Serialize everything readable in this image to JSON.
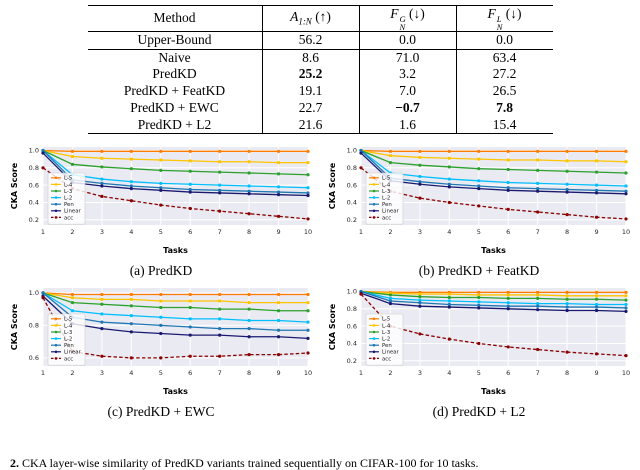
{
  "table": {
    "headers": {
      "method": "Method",
      "a": {
        "base": "A",
        "sub": "1:N",
        "arrow": "(↑)"
      },
      "fg": {
        "base": "F",
        "sup": "G",
        "sub": "N",
        "arrow": "(↓)"
      },
      "fl": {
        "base": "F",
        "sup": "L",
        "sub": "N",
        "arrow": "(↓)"
      }
    },
    "rows": [
      {
        "method": "Upper-Bound",
        "cells": [
          {
            "t": "56.2",
            "b": false
          },
          {
            "t": "0.0",
            "b": false
          },
          {
            "t": "0.0",
            "b": false
          }
        ]
      },
      {
        "method": "Naive",
        "cells": [
          {
            "t": "8.6",
            "b": false
          },
          {
            "t": "71.0",
            "b": false
          },
          {
            "t": "63.4",
            "b": false
          }
        ]
      },
      {
        "method": "PredKD",
        "cells": [
          {
            "t": "25.2",
            "b": true
          },
          {
            "t": "3.2",
            "b": false
          },
          {
            "t": "27.2",
            "b": false
          }
        ]
      },
      {
        "method": "PredKD + FeatKD",
        "cells": [
          {
            "t": "19.1",
            "b": false
          },
          {
            "t": "7.0",
            "b": false
          },
          {
            "t": "26.5",
            "b": false
          }
        ]
      },
      {
        "method": "PredKD + EWC",
        "cells": [
          {
            "t": "22.7",
            "b": false
          },
          {
            "t": "−0.7",
            "b": true
          },
          {
            "t": "7.8",
            "b": true
          }
        ]
      },
      {
        "method": "PredKD + L2",
        "cells": [
          {
            "t": "21.6",
            "b": false
          },
          {
            "t": "1.6",
            "b": false
          },
          {
            "t": "15.4",
            "b": false
          }
        ]
      }
    ]
  },
  "chart_data": [
    {
      "type": "line",
      "caption": "(a) PredKD",
      "xlabel": "Tasks",
      "ylabel": "CKA Score",
      "x": [
        1,
        2,
        3,
        4,
        5,
        6,
        7,
        8,
        9,
        10
      ],
      "ylim": [
        0.14,
        1.04
      ],
      "yticks": [
        0.2,
        0.4,
        0.6,
        0.8,
        1.0
      ],
      "bg": "#eaeaf2",
      "legend": "left",
      "series": [
        {
          "name": "L-5",
          "color": "#ff7c00",
          "dash": false,
          "values": [
            1.0,
            0.99,
            0.99,
            0.99,
            0.99,
            0.99,
            0.99,
            0.99,
            0.99,
            0.99
          ]
        },
        {
          "name": "L-4",
          "color": "#ffc400",
          "dash": false,
          "values": [
            1.0,
            0.93,
            0.91,
            0.9,
            0.89,
            0.88,
            0.87,
            0.87,
            0.86,
            0.86
          ]
        },
        {
          "name": "L-3",
          "color": "#2ca02c",
          "dash": false,
          "values": [
            1.0,
            0.84,
            0.81,
            0.79,
            0.77,
            0.76,
            0.75,
            0.74,
            0.73,
            0.72
          ]
        },
        {
          "name": "L-2",
          "color": "#00bfff",
          "dash": false,
          "values": [
            1.0,
            0.72,
            0.67,
            0.64,
            0.62,
            0.61,
            0.6,
            0.59,
            0.58,
            0.57
          ]
        },
        {
          "name": "Pen",
          "color": "#1f77b4",
          "dash": false,
          "values": [
            1.0,
            0.66,
            0.62,
            0.59,
            0.57,
            0.55,
            0.54,
            0.53,
            0.52,
            0.51
          ]
        },
        {
          "name": "Linear",
          "color": "#191970",
          "dash": false,
          "values": [
            0.97,
            0.63,
            0.59,
            0.56,
            0.54,
            0.52,
            0.51,
            0.5,
            0.49,
            0.48
          ]
        },
        {
          "name": "acc",
          "color": "#8b0000",
          "dash": true,
          "values": [
            0.8,
            0.56,
            0.47,
            0.42,
            0.37,
            0.33,
            0.3,
            0.27,
            0.24,
            0.21
          ]
        }
      ]
    },
    {
      "type": "line",
      "caption": "(b) PredKD + FeatKD",
      "xlabel": "Tasks",
      "ylabel": "CKA Score",
      "x": [
        1,
        2,
        3,
        4,
        5,
        6,
        7,
        8,
        9,
        10
      ],
      "ylim": [
        0.14,
        1.04
      ],
      "yticks": [
        0.2,
        0.4,
        0.6,
        0.8,
        1.0
      ],
      "bg": "#eaeaf2",
      "legend": "left",
      "series": [
        {
          "name": "L-5",
          "color": "#ff7c00",
          "dash": false,
          "values": [
            1.0,
            0.99,
            0.99,
            0.99,
            0.99,
            0.99,
            0.99,
            0.99,
            0.99,
            0.99
          ]
        },
        {
          "name": "L-4",
          "color": "#ffc400",
          "dash": false,
          "values": [
            1.0,
            0.94,
            0.92,
            0.91,
            0.9,
            0.89,
            0.89,
            0.88,
            0.88,
            0.87
          ]
        },
        {
          "name": "L-3",
          "color": "#2ca02c",
          "dash": false,
          "values": [
            1.0,
            0.86,
            0.83,
            0.81,
            0.79,
            0.78,
            0.77,
            0.76,
            0.75,
            0.74
          ]
        },
        {
          "name": "L-2",
          "color": "#00bfff",
          "dash": false,
          "values": [
            1.0,
            0.74,
            0.7,
            0.67,
            0.65,
            0.63,
            0.62,
            0.61,
            0.6,
            0.59
          ]
        },
        {
          "name": "Pen",
          "color": "#1f77b4",
          "dash": false,
          "values": [
            1.0,
            0.68,
            0.64,
            0.61,
            0.59,
            0.57,
            0.56,
            0.55,
            0.54,
            0.53
          ]
        },
        {
          "name": "Linear",
          "color": "#191970",
          "dash": false,
          "values": [
            0.97,
            0.65,
            0.61,
            0.58,
            0.56,
            0.54,
            0.53,
            0.52,
            0.51,
            0.5
          ]
        },
        {
          "name": "acc",
          "color": "#8b0000",
          "dash": true,
          "values": [
            0.8,
            0.53,
            0.45,
            0.4,
            0.36,
            0.32,
            0.29,
            0.26,
            0.23,
            0.21
          ]
        }
      ]
    },
    {
      "type": "line",
      "caption": "(c) PredKD + EWC",
      "xlabel": "Tasks",
      "ylabel": "CKA Score",
      "x": [
        1,
        2,
        3,
        4,
        5,
        6,
        7,
        8,
        9,
        10
      ],
      "ylim": [
        0.55,
        1.03
      ],
      "yticks": [
        0.6,
        0.8,
        1.0
      ],
      "bg": "#eaeaf2",
      "legend": "left",
      "series": [
        {
          "name": "L-5",
          "color": "#ff7c00",
          "dash": false,
          "values": [
            1.0,
            0.99,
            0.99,
            0.99,
            0.99,
            0.99,
            0.99,
            0.99,
            0.99,
            0.99
          ]
        },
        {
          "name": "L-4",
          "color": "#ffc400",
          "dash": false,
          "values": [
            1.0,
            0.97,
            0.96,
            0.96,
            0.95,
            0.95,
            0.95,
            0.94,
            0.94,
            0.94
          ]
        },
        {
          "name": "L-3",
          "color": "#2ca02c",
          "dash": false,
          "values": [
            1.0,
            0.94,
            0.93,
            0.92,
            0.91,
            0.91,
            0.9,
            0.9,
            0.89,
            0.89
          ]
        },
        {
          "name": "L-2",
          "color": "#00bfff",
          "dash": false,
          "values": [
            1.0,
            0.89,
            0.87,
            0.86,
            0.85,
            0.84,
            0.84,
            0.83,
            0.83,
            0.82
          ]
        },
        {
          "name": "Pen",
          "color": "#1f77b4",
          "dash": false,
          "values": [
            1.0,
            0.85,
            0.82,
            0.81,
            0.8,
            0.79,
            0.78,
            0.78,
            0.77,
            0.77
          ]
        },
        {
          "name": "Linear",
          "color": "#191970",
          "dash": false,
          "values": [
            0.98,
            0.81,
            0.78,
            0.76,
            0.75,
            0.74,
            0.74,
            0.73,
            0.73,
            0.72
          ]
        },
        {
          "name": "acc",
          "color": "#8b0000",
          "dash": true,
          "values": [
            0.97,
            0.64,
            0.61,
            0.6,
            0.6,
            0.61,
            0.61,
            0.62,
            0.62,
            0.63
          ]
        }
      ]
    },
    {
      "type": "line",
      "caption": "(d) PredKD + L2",
      "xlabel": "Tasks",
      "ylabel": "CKA Score",
      "x": [
        1,
        2,
        3,
        4,
        5,
        6,
        7,
        8,
        9,
        10
      ],
      "ylim": [
        0.14,
        1.04
      ],
      "yticks": [
        0.2,
        0.4,
        0.6,
        0.8,
        1.0
      ],
      "bg": "#eaeaf2",
      "legend": "left",
      "series": [
        {
          "name": "L-5",
          "color": "#ff7c00",
          "dash": false,
          "values": [
            1.0,
            0.99,
            0.99,
            0.99,
            0.99,
            0.99,
            0.99,
            0.99,
            0.99,
            0.99
          ]
        },
        {
          "name": "L-4",
          "color": "#ffc400",
          "dash": false,
          "values": [
            1.0,
            0.98,
            0.97,
            0.97,
            0.96,
            0.96,
            0.96,
            0.95,
            0.95,
            0.95
          ]
        },
        {
          "name": "L-3",
          "color": "#2ca02c",
          "dash": false,
          "values": [
            1.0,
            0.96,
            0.94,
            0.93,
            0.93,
            0.92,
            0.92,
            0.91,
            0.91,
            0.9
          ]
        },
        {
          "name": "L-2",
          "color": "#00bfff",
          "dash": false,
          "values": [
            1.0,
            0.92,
            0.9,
            0.89,
            0.88,
            0.87,
            0.86,
            0.86,
            0.85,
            0.85
          ]
        },
        {
          "name": "Pen",
          "color": "#1f77b4",
          "dash": false,
          "values": [
            1.0,
            0.89,
            0.87,
            0.85,
            0.84,
            0.83,
            0.83,
            0.82,
            0.82,
            0.81
          ]
        },
        {
          "name": "Linear",
          "color": "#191970",
          "dash": false,
          "values": [
            0.98,
            0.86,
            0.83,
            0.82,
            0.81,
            0.8,
            0.79,
            0.78,
            0.78,
            0.77
          ]
        },
        {
          "name": "acc",
          "color": "#8b0000",
          "dash": true,
          "values": [
            0.97,
            0.6,
            0.51,
            0.45,
            0.4,
            0.36,
            0.33,
            0.3,
            0.28,
            0.26
          ]
        }
      ]
    }
  ],
  "bottom_caption": {
    "lead": "2.",
    "text": " CKA layer-wise similarity of PredKD variants trained sequentially on CIFAR-100 for 10 tasks."
  }
}
